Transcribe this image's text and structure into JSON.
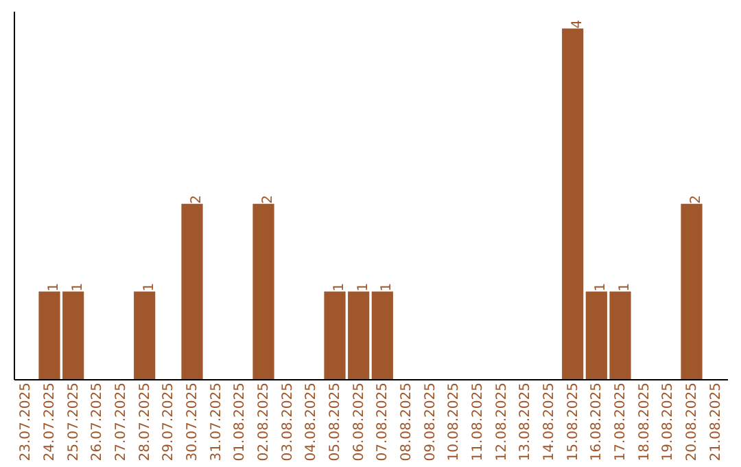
{
  "chart_data": {
    "type": "bar",
    "categories": [
      "23.07.2025",
      "24.07.2025",
      "25.07.2025",
      "26.07.2025",
      "27.07.2025",
      "28.07.2025",
      "29.07.2025",
      "30.07.2025",
      "31.07.2025",
      "01.08.2025",
      "02.08.2025",
      "03.08.2025",
      "04.08.2025",
      "05.08.2025",
      "06.08.2025",
      "07.08.2025",
      "08.08.2025",
      "09.08.2025",
      "10.08.2025",
      "11.08.2025",
      "12.08.2025",
      "13.08.2025",
      "14.08.2025",
      "15.08.2025",
      "16.08.2025",
      "17.08.2025",
      "18.08.2025",
      "19.08.2025",
      "20.08.2025",
      "21.08.2025"
    ],
    "values": [
      0,
      1,
      1,
      0,
      0,
      1,
      0,
      2,
      0,
      0,
      2,
      0,
      0,
      1,
      1,
      1,
      0,
      0,
      0,
      0,
      0,
      0,
      0,
      4,
      1,
      1,
      0,
      0,
      2,
      0
    ],
    "color": "#a0572b",
    "ylim": [
      0,
      4.2
    ],
    "tick_labels": "x",
    "grid": false,
    "value_labels": [
      null,
      "1",
      "1",
      null,
      null,
      "1",
      null,
      "2",
      null,
      null,
      "2",
      null,
      null,
      "1",
      "1",
      "1",
      null,
      null,
      null,
      null,
      null,
      null,
      null,
      "4",
      "1",
      "1",
      null,
      null,
      "2",
      null
    ]
  }
}
